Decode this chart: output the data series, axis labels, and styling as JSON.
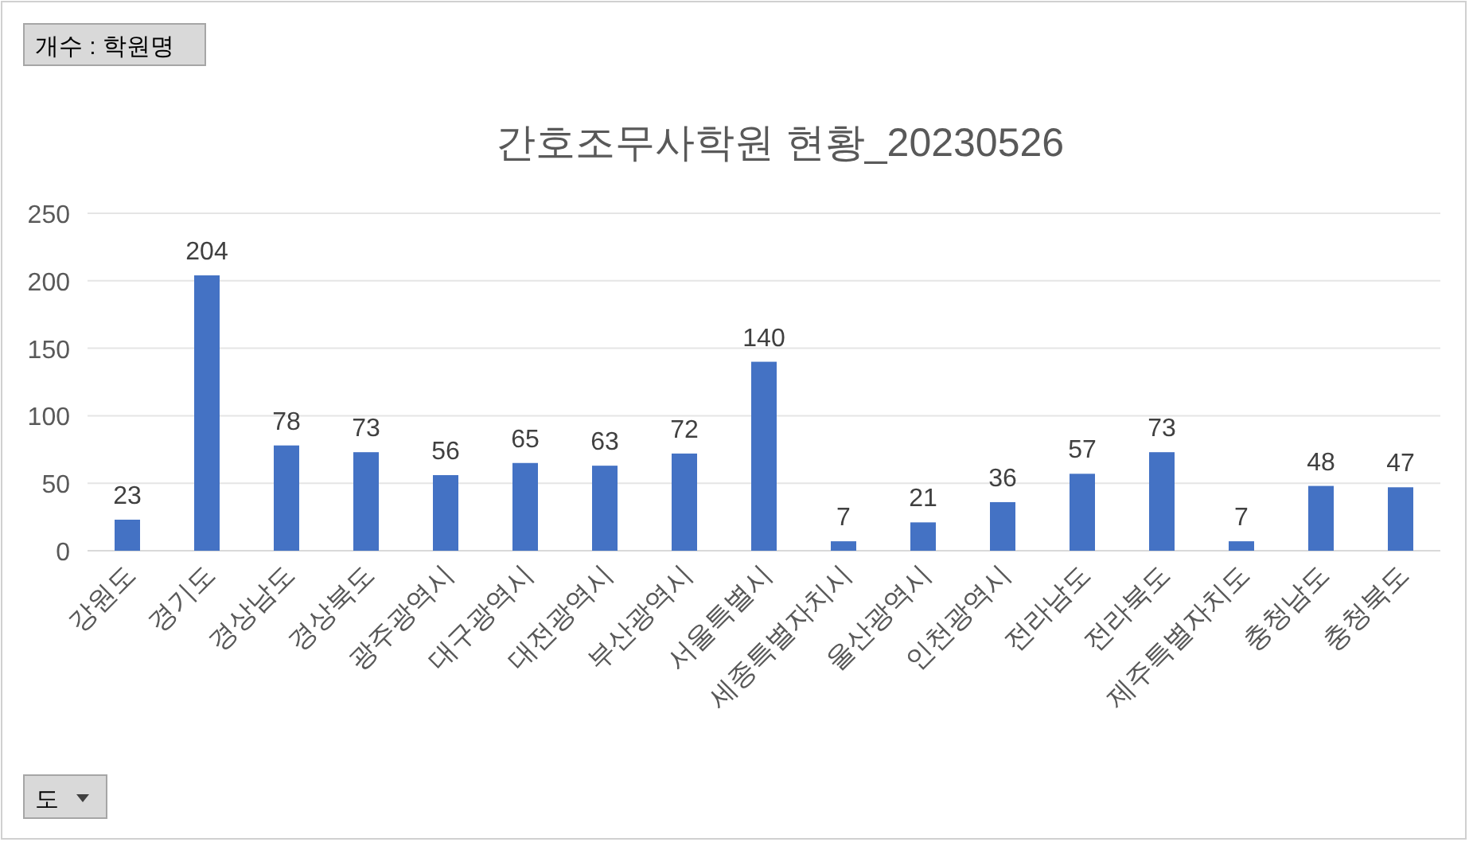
{
  "chart_data": {
    "type": "bar",
    "title": "간호조무사학원 현황_20230526",
    "categories": [
      "강원도",
      "경기도",
      "경상남도",
      "경상북도",
      "광주광역시",
      "대구광역시",
      "대전광역시",
      "부산광역시",
      "서울특별시",
      "세종특별자치시",
      "울산광역시",
      "인천광역시",
      "전라남도",
      "전라북도",
      "제주특별자치도",
      "충청남도",
      "충청북도"
    ],
    "values": [
      23,
      204,
      78,
      73,
      56,
      65,
      63,
      72,
      140,
      7,
      21,
      36,
      57,
      73,
      7,
      48,
      47
    ],
    "color": "#4472c4",
    "ylim": [
      0,
      250
    ],
    "yticks": [
      0,
      50,
      100,
      150,
      200,
      250
    ],
    "grid": "y",
    "data_labels": true,
    "annotations": [
      "개수 : 학원명",
      "도"
    ]
  }
}
